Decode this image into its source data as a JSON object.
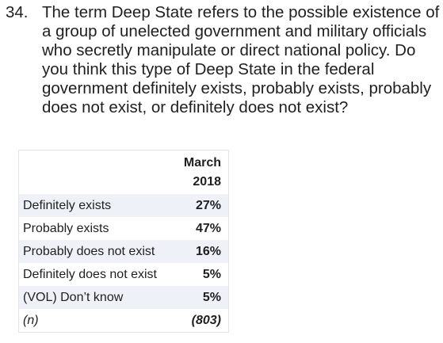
{
  "question": {
    "number": "34.",
    "text": "The term Deep State refers to the possible existence of a group of unelected government and military officials who secretly manipulate or direct national policy. Do you think this type of Deep State in the federal government definitely exists, probably exists, probably does not exist, or definitely does not exist?"
  },
  "table": {
    "header": {
      "line1": "March",
      "line2": "2018"
    },
    "rows": [
      {
        "label": "Definitely exists",
        "value": "27%"
      },
      {
        "label": "Probably exists",
        "value": "47%"
      },
      {
        "label": "Probably does not exist",
        "value": "16%"
      },
      {
        "label": "Definitely does not exist",
        "value": "5%"
      },
      {
        "label": "(VOL) Don’t know",
        "value": "5%"
      },
      {
        "label": "(n)",
        "value": "(803)"
      }
    ]
  },
  "colors": {
    "row_shade": "#eef2f8",
    "border": "#e4e4e4",
    "text": "#1f1f1f"
  }
}
